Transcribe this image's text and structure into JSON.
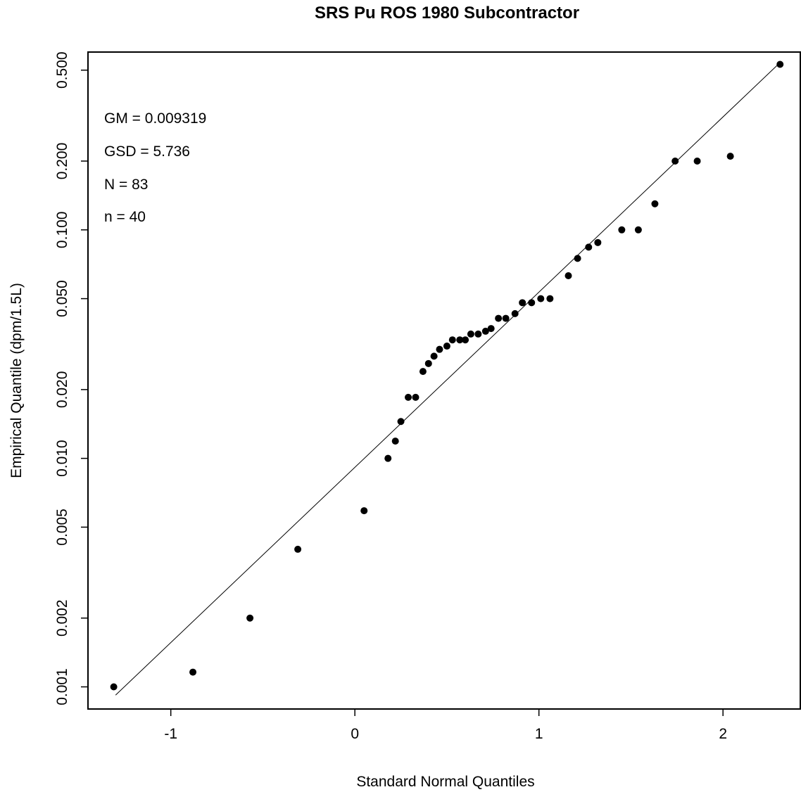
{
  "chart_data": {
    "type": "scatter",
    "title": "SRS Pu ROS 1980 Subcontractor",
    "xlabel": "Standard Normal Quantiles",
    "ylabel": "Empirical Quantile (dpm/1.5L)",
    "y_scale": "log",
    "xlim": [
      -1.45,
      2.42
    ],
    "ylim": [
      0.0008,
      0.6
    ],
    "x_ticks": [
      -1,
      0,
      1,
      2
    ],
    "x_tick_labels": [
      "-1",
      "0",
      "1",
      "2"
    ],
    "y_ticks": [
      0.001,
      0.002,
      0.005,
      0.01,
      0.02,
      0.05,
      0.1,
      0.2,
      0.5
    ],
    "y_tick_labels": [
      "0.001",
      "0.002",
      "0.005",
      "0.010",
      "0.020",
      "0.050",
      "0.100",
      "0.200",
      "0.500"
    ],
    "grid": false,
    "annotations": [
      "GM = 0.009319",
      "GSD = 5.736",
      "N = 83",
      "n = 40"
    ],
    "reference_line": {
      "x": [
        -1.3,
        2.3
      ],
      "y": [
        0.00092,
        0.53
      ]
    },
    "points": {
      "x": [
        -1.31,
        -0.88,
        -0.57,
        -0.31,
        0.05,
        0.18,
        0.22,
        0.25,
        0.29,
        0.33,
        0.37,
        0.4,
        0.43,
        0.46,
        0.5,
        0.53,
        0.57,
        0.6,
        0.63,
        0.67,
        0.71,
        0.74,
        0.78,
        0.82,
        0.87,
        0.91,
        0.96,
        1.01,
        1.06,
        1.16,
        1.21,
        1.27,
        1.32,
        1.45,
        1.54,
        1.63,
        1.74,
        1.86,
        2.04,
        2.31
      ],
      "y": [
        0.001,
        0.00116,
        0.002,
        0.004,
        0.0059,
        0.01,
        0.0119,
        0.0145,
        0.0185,
        0.0185,
        0.024,
        0.026,
        0.028,
        0.03,
        0.031,
        0.033,
        0.033,
        0.033,
        0.035,
        0.035,
        0.036,
        0.037,
        0.041,
        0.041,
        0.043,
        0.048,
        0.048,
        0.05,
        0.05,
        0.063,
        0.075,
        0.084,
        0.088,
        0.1,
        0.1,
        0.13,
        0.2,
        0.2,
        0.21,
        0.53
      ]
    }
  }
}
